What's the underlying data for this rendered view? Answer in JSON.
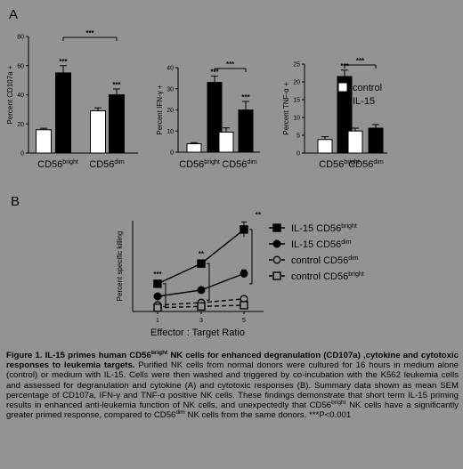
{
  "chart_data": [
    {
      "panel": "A",
      "type": "bar",
      "ylabel": "Percent CD107a +",
      "ylim": [
        0,
        80
      ],
      "yticks": [
        "0",
        "20",
        "40",
        "60",
        "80"
      ],
      "categories": [
        {
          "main": "CD56",
          "sup": "bright"
        },
        {
          "main": "CD56",
          "sup": "dim"
        }
      ],
      "series": [
        {
          "name": "control",
          "values": [
            16,
            29
          ],
          "errors": [
            1,
            2
          ]
        },
        {
          "name": "IL-15",
          "values": [
            55,
            40
          ],
          "errors": [
            5,
            4
          ]
        }
      ],
      "significance": [
        {
          "label": "***",
          "over": "IL-15 CD56bright"
        },
        {
          "label": "***",
          "over": "IL-15 CD56dim"
        },
        {
          "label": "***",
          "bracket": "IL-15 CD56bright vs IL-15 CD56dim"
        }
      ]
    },
    {
      "panel": "A",
      "type": "bar",
      "ylabel": "Percent IFN-γ +",
      "ylim": [
        0,
        40
      ],
      "yticks": [
        "0",
        "10",
        "20",
        "30",
        "40"
      ],
      "categories": [
        {
          "main": "CD56",
          "sup": "bright"
        },
        {
          "main": "CD56",
          "sup": "dim"
        }
      ],
      "series": [
        {
          "name": "control",
          "values": [
            4,
            9.5
          ],
          "errors": [
            0.5,
            2
          ]
        },
        {
          "name": "IL-15",
          "values": [
            33,
            20
          ],
          "errors": [
            3,
            4
          ]
        }
      ],
      "significance": [
        {
          "label": "***",
          "over": "IL-15 CD56bright"
        },
        {
          "label": "***",
          "over": "IL-15 CD56dim"
        },
        {
          "label": "***",
          "bracket": "IL-15 CD56bright vs IL-15 CD56dim"
        }
      ]
    },
    {
      "panel": "A",
      "type": "bar",
      "ylabel": "Percent TNF-α +",
      "ylim": [
        0,
        25
      ],
      "yticks": [
        "0",
        "5",
        "10",
        "15",
        "20",
        "25"
      ],
      "categories": [
        {
          "main": "CD56",
          "sup": "bright"
        },
        {
          "main": "CD56",
          "sup": "dim"
        }
      ],
      "series": [
        {
          "name": "control",
          "values": [
            3.8,
            6.2
          ],
          "errors": [
            0.8,
            0.8
          ]
        },
        {
          "name": "IL-15",
          "values": [
            21.5,
            7
          ],
          "errors": [
            1.8,
            1
          ]
        }
      ],
      "significance": [
        {
          "label": "***",
          "over": "IL-15 CD56bright"
        },
        {
          "label": "***",
          "bracket": "IL-15 CD56bright vs IL-15 CD56dim"
        }
      ],
      "legend": [
        {
          "name": "control",
          "color": "#ffffff"
        },
        {
          "name": "IL-15",
          "color": "#000000"
        }
      ],
      "legend_position": "top-right"
    },
    {
      "panel": "B",
      "type": "line",
      "xlabel": "Effector : Target Ratio",
      "ylabel": "Percent specific killing",
      "x": [
        1,
        3,
        5
      ],
      "xticks": [
        "1",
        "3",
        "5"
      ],
      "series": [
        {
          "name": "IL-15 CD56",
          "sup": "bright",
          "marker": "filled-square",
          "dash": false,
          "values": [
            11,
            19,
            32.5
          ],
          "errors": [
            0.8,
            1,
            3
          ]
        },
        {
          "name": "IL-15 CD56",
          "sup": "dim",
          "marker": "filled-circle",
          "dash": false,
          "values": [
            6,
            8.5,
            15
          ],
          "errors": [
            0.5,
            0.6,
            1.5
          ]
        },
        {
          "name": "control CD56",
          "sup": "dim",
          "marker": "open-circle",
          "dash": true,
          "values": [
            2.5,
            3.5,
            5
          ],
          "errors": [
            0.3,
            0.3,
            0.5
          ]
        },
        {
          "name": "control CD56",
          "sup": "bright",
          "marker": "open-square",
          "dash": true,
          "values": [
            1.5,
            2,
            2.5
          ],
          "errors": [
            0.3,
            0.3,
            0.3
          ]
        }
      ],
      "significance": [
        {
          "x": 1,
          "label": "***"
        },
        {
          "x": 3,
          "label": "**"
        },
        {
          "x": 5,
          "label": "**"
        }
      ],
      "legend_position": "right"
    }
  ],
  "caption": {
    "prefix": "Figure 1. IL-15 primes human CD56",
    "sup1": "bright",
    "bold_rest": " NK cells for enhanced degranulation (CD107a) ,cytokine and cytotoxic responses to leukemia targets.",
    "text1": " Purified NK cells from normal donors were cultured for 16 hours in medium alone (control) or medium with IL-15. Cells were then washed and triggered by co-incubation with the K562 leukemia cells and assessed for degranulation and cytokine (A) and cytotoxic responses (B). Summary data shown as mean  SEM percentage of CD107a, IFN-γ and TNF-α positive NK cells. These findings demonstrate that short term IL-15 priming results in enhanced anti-leukemia function of NK cells, and unexpectedly that CD56",
    "sup2": "bright",
    "text2": " NK cells have a significantly greater primed response, compared to CD56",
    "sup3": "dim",
    "text3": " NK cells from the same donors.  ***P<0.001"
  },
  "panel_labels": {
    "a": "A",
    "b": "B"
  }
}
